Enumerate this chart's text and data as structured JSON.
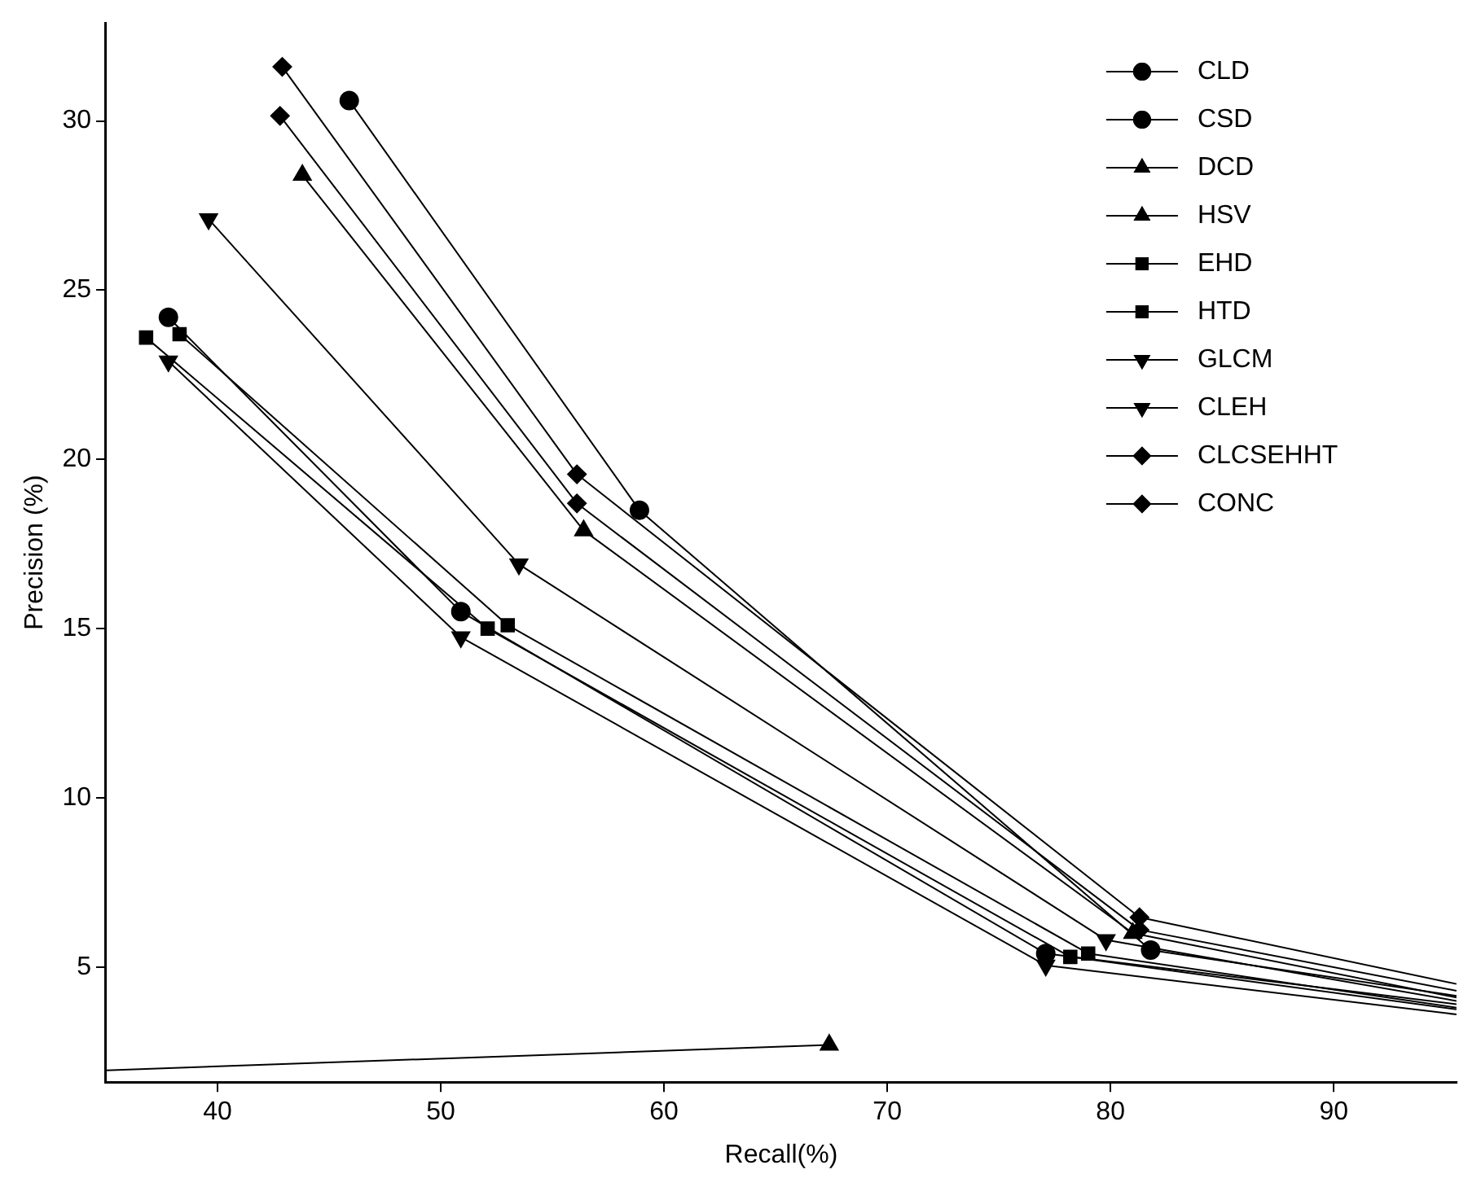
{
  "chart_data": {
    "type": "line",
    "xlabel": "Recall(%)",
    "ylabel": "Precision (%)",
    "xlim": [
      35,
      95.5
    ],
    "xticks": [
      40,
      50,
      60,
      70,
      80,
      90
    ],
    "ylim": [
      1.6,
      32.9
    ],
    "yticks": [
      5,
      10,
      15,
      20,
      25,
      30
    ],
    "grid": false,
    "legend": "top right",
    "line_style": "solid",
    "series": [
      {
        "name": "CLD",
        "color": "#000000",
        "marker": "circle",
        "x": [
          37.8,
          50.9,
          77.1,
          95.5
        ],
        "values": [
          24.2,
          15.5,
          5.4,
          3.9
        ]
      },
      {
        "name": "CSD",
        "color": "#000000",
        "marker": "circle",
        "x": [
          45.9,
          58.9,
          81.8,
          95.5
        ],
        "values": [
          30.6,
          18.5,
          5.5,
          4.15
        ]
      },
      {
        "name": "DCD",
        "color": "#000000",
        "marker": "triangle",
        "x": [
          35,
          67.4
        ],
        "values": [
          1.95,
          2.7
        ]
      },
      {
        "name": "HSV",
        "color": "#000000",
        "marker": "triangle",
        "x": [
          43.8,
          56.4,
          81,
          95.5
        ],
        "values": [
          28.4,
          17.9,
          6.0,
          4.1
        ]
      },
      {
        "name": "EHD",
        "color": "#000000",
        "marker": "square",
        "x": [
          38.3,
          53.0,
          79.0,
          95.5
        ],
        "values": [
          23.7,
          15.1,
          5.4,
          3.8
        ]
      },
      {
        "name": "HTD",
        "color": "#000000",
        "marker": "square",
        "x": [
          36.8,
          52.1,
          78.2,
          95.5
        ],
        "values": [
          23.6,
          15.0,
          5.3,
          3.75
        ]
      },
      {
        "name": "GLCM",
        "color": "#000000",
        "marker": "triangle_down",
        "x": [
          37.8,
          50.9,
          77.1,
          95.5
        ],
        "values": [
          22.9,
          14.75,
          5.05,
          3.6
        ]
      },
      {
        "name": "CLEH",
        "color": "#000000",
        "marker": "triangle_down",
        "x": [
          39.6,
          53.5,
          79.8,
          95.5
        ],
        "values": [
          27.1,
          16.9,
          5.8,
          4.0
        ]
      },
      {
        "name": "CLCSEHHT",
        "color": "#000000",
        "marker": "diamond",
        "x": [
          42.8,
          56.1,
          81.3,
          95.5
        ],
        "values": [
          30.15,
          18.7,
          6.1,
          4.3
        ]
      },
      {
        "name": "CONC",
        "color": "#000000",
        "marker": "diamond",
        "x": [
          42.9,
          56.1,
          81.3,
          95.5
        ],
        "values": [
          31.6,
          19.56,
          6.47,
          4.5
        ]
      }
    ]
  }
}
